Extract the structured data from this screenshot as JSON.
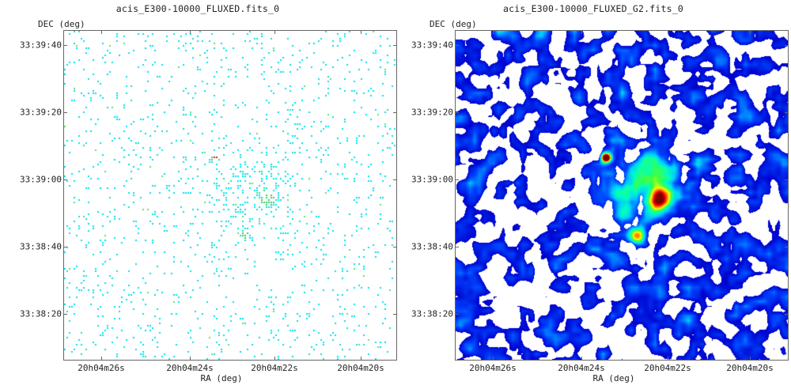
{
  "images": [
    {
      "id": "left",
      "title": "acis_E300-10000_FLUXED.fits_0",
      "style": "raw-counts",
      "y_axis_label": "DEC (deg)",
      "x_axis_label": "RA (deg)",
      "dec_ticks": [
        "33:39:40",
        "33:39:20",
        "33:39:00",
        "33:38:40",
        "33:38:20"
      ],
      "ra_ticks": [
        "20h04m26s",
        "20h04m24s",
        "20h04m22s",
        "20h04m20s"
      ]
    },
    {
      "id": "right",
      "title": "acis_E300-10000_FLUXED_G2.fits_0",
      "style": "smoothed",
      "y_axis_label": "DEC (deg)",
      "x_axis_label": "RA (deg)",
      "dec_ticks": [
        "33:39:40",
        "33:39:20",
        "33:39:00",
        "33:38:40",
        "33:38:20"
      ],
      "ra_ticks": [
        "20h04m26s",
        "20h04m24s",
        "20h04m22s",
        "20h04m20s"
      ]
    }
  ],
  "colormap": [
    "#ffffff",
    "#0000cc",
    "#0044ff",
    "#00c8ff",
    "#00ffc0",
    "#40ff40",
    "#ffff00",
    "#ff8000",
    "#ff0000",
    "#800000"
  ],
  "colors": {
    "frame": "#666666",
    "background": "#ffffff"
  }
}
